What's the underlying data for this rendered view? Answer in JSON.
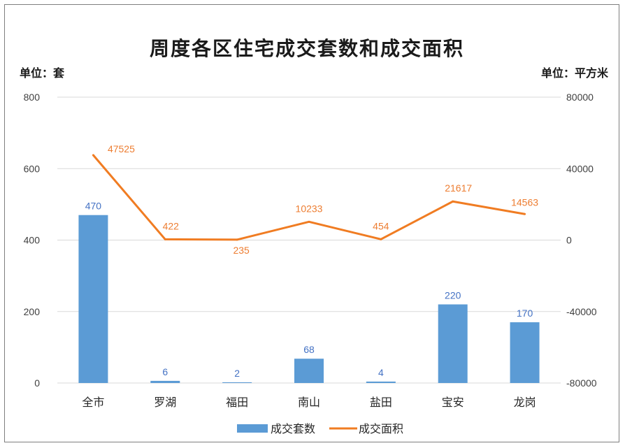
{
  "chart_data": {
    "type": "bar",
    "title": "周度各区住宅成交套数和成交面积",
    "categories": [
      "全市",
      "罗湖",
      "福田",
      "南山",
      "盐田",
      "宝安",
      "龙岗"
    ],
    "y_left": {
      "unit_label": "单位：套",
      "ylim": [
        0,
        800
      ],
      "ticks": [
        "0",
        "200",
        "400",
        "600",
        "800"
      ]
    },
    "y_right": {
      "unit_label": "单位：平方米",
      "ylim": [
        -80000,
        80000
      ],
      "ticks": [
        "-80000",
        "-40000",
        "0",
        "40000",
        "80000"
      ]
    },
    "series": [
      {
        "name": "成交套数",
        "type": "bar",
        "axis": "left",
        "color": "#5b9bd5",
        "label_color": "#4472c4",
        "values": [
          470,
          6,
          2,
          68,
          4,
          220,
          170
        ],
        "labels": [
          "470",
          "6",
          "2",
          "68",
          "4",
          "220",
          "170"
        ]
      },
      {
        "name": "成交面积",
        "type": "line",
        "axis": "right",
        "color": "#f07c22",
        "label_color": "#ed7d31",
        "values": [
          47525,
          422,
          235,
          10233,
          454,
          21617,
          14563
        ],
        "labels": [
          "47525",
          "422",
          "235",
          "10233",
          "454",
          "21617",
          "14563"
        ]
      }
    ],
    "grid": true,
    "legend": "bottom"
  }
}
